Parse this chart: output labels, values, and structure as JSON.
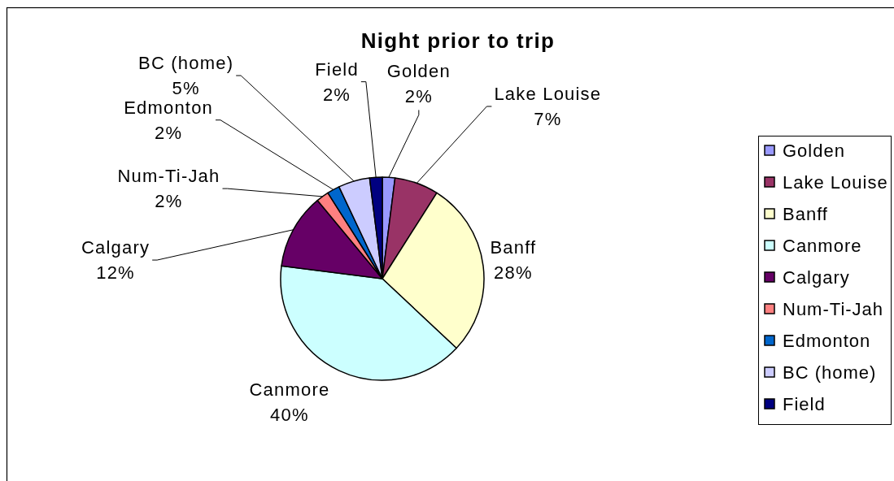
{
  "chart_data": {
    "type": "pie",
    "title": "Night prior to trip",
    "categories": [
      "Golden",
      "Lake Louise",
      "Banff",
      "Canmore",
      "Calgary",
      "Num-Ti-Jah",
      "Edmonton",
      "BC (home)",
      "Field"
    ],
    "values": [
      2,
      7,
      28,
      40,
      12,
      2,
      2,
      5,
      2
    ],
    "value_labels": [
      "2%",
      "7%",
      "28%",
      "40%",
      "12%",
      "2%",
      "2%",
      "5%",
      "2%"
    ],
    "colors": [
      "#9999ff",
      "#993366",
      "#ffffcc",
      "#ccffff",
      "#660066",
      "#ff8080",
      "#0066cc",
      "#ccccff",
      "#000080"
    ],
    "legend": "right"
  }
}
